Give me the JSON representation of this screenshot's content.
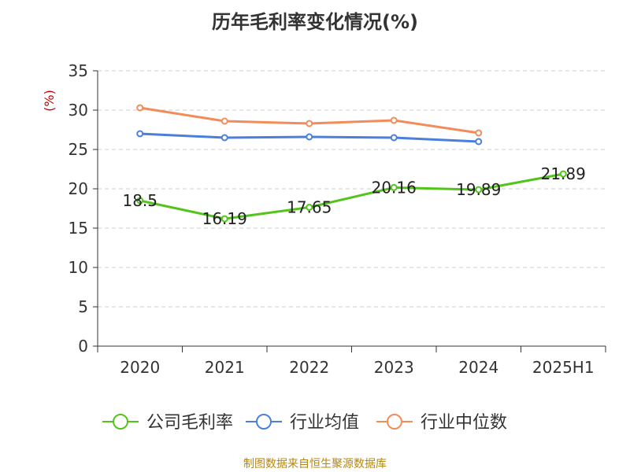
{
  "title": "历年毛利率变化情况(%)",
  "footer": "制图数据来自恒生聚源数据库",
  "chart_data": {
    "type": "line",
    "title": "历年毛利率变化情况(%)",
    "ylabel": "(%)",
    "xlabel": "",
    "categories": [
      "2020",
      "2021",
      "2022",
      "2023",
      "2024",
      "2025H1"
    ],
    "ylim": [
      0,
      35
    ],
    "yticks": [
      0,
      5,
      10,
      15,
      20,
      25,
      30,
      35
    ],
    "grid": "horizontal dashed",
    "legend_position": "bottom",
    "series": [
      {
        "name": "公司毛利率",
        "color": "#52c41a",
        "values": [
          18.5,
          16.19,
          17.65,
          20.16,
          19.89,
          21.89
        ],
        "labels": [
          "18.5",
          "16.19",
          "17.65",
          "20.16",
          "19.89",
          "21.89"
        ],
        "show_labels": true
      },
      {
        "name": "行业均值",
        "color": "#4a7fdc",
        "values": [
          27.0,
          26.5,
          26.6,
          26.5,
          26.0,
          null
        ],
        "show_labels": false
      },
      {
        "name": "行业中位数",
        "color": "#f28c5a",
        "values": [
          30.3,
          28.6,
          28.3,
          28.7,
          27.1,
          null
        ],
        "show_labels": false
      }
    ]
  }
}
